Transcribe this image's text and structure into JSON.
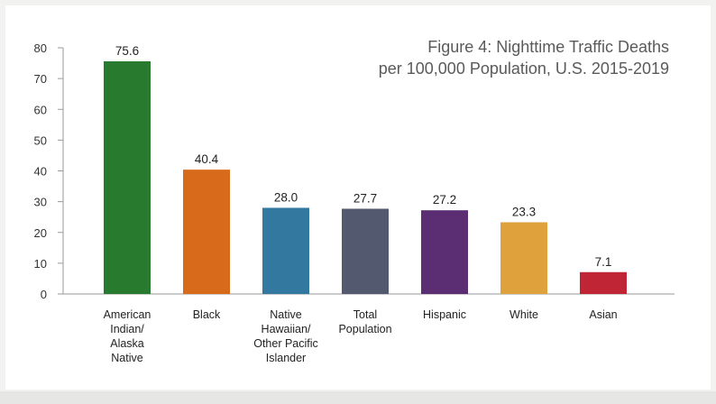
{
  "chart_data": {
    "type": "bar",
    "title": "Figure 4: Nighttime Traffic Deaths",
    "subtitle": "per 100,000 Population, U.S. 2015-2019",
    "categories": [
      [
        "American",
        "Indian/",
        "Alaska",
        "Native"
      ],
      [
        "Black"
      ],
      [
        "Native",
        "Hawaiian/",
        "Other Pacific",
        "Islander"
      ],
      [
        "Total",
        "Population"
      ],
      [
        "Hispanic"
      ],
      [
        "White"
      ],
      [
        "Asian"
      ]
    ],
    "values": [
      75.6,
      40.4,
      28.0,
      27.7,
      27.2,
      23.3,
      7.1
    ],
    "value_labels": [
      "75.6",
      "40.4",
      "28.0",
      "27.7",
      "27.2",
      "23.3",
      "7.1"
    ],
    "colors": [
      "#277a2e",
      "#d86a1c",
      "#33799f",
      "#535a6f",
      "#5b2d73",
      "#dea13b",
      "#bf2534"
    ],
    "yticks": [
      "0",
      "10",
      "20",
      "30",
      "40",
      "50",
      "60",
      "70",
      "80"
    ],
    "ylim": [
      0,
      80
    ],
    "xlabel": "",
    "ylabel": "",
    "grid": false
  }
}
